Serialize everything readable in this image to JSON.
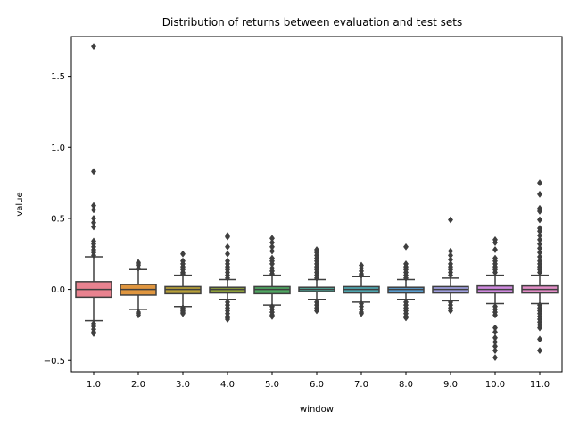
{
  "chart_data": {
    "type": "box",
    "title": "Distribution of returns between evaluation and test sets",
    "xlabel": "window",
    "ylabel": "value",
    "ylim": [
      -0.58,
      1.78
    ],
    "yticks": [
      -0.5,
      0.0,
      0.5,
      1.0,
      1.5
    ],
    "ytick_labels": [
      "−0.5",
      "0.0",
      "0.5",
      "1.0",
      "1.5"
    ],
    "categories": [
      "1.0",
      "2.0",
      "3.0",
      "4.0",
      "5.0",
      "6.0",
      "7.0",
      "8.0",
      "9.0",
      "10.0",
      "11.0"
    ],
    "colors": [
      "#e8828f",
      "#e0963f",
      "#b8a039",
      "#8ea03a",
      "#4fa862",
      "#4ea99a",
      "#4fa7b0",
      "#5a9ed0",
      "#a0a0e0",
      "#d08ae0",
      "#e38ec8"
    ],
    "boxes": [
      {
        "q1": -0.055,
        "median": 0.0,
        "q3": 0.055,
        "whislo": -0.22,
        "whishi": 0.23,
        "outliers": [
          1.71,
          0.83,
          0.59,
          0.56,
          0.5,
          0.47,
          0.44,
          0.34,
          0.32,
          0.3,
          0.28,
          0.26,
          0.24,
          -0.24,
          -0.26,
          -0.28,
          -0.3,
          -0.31
        ]
      },
      {
        "q1": -0.04,
        "median": 0.0,
        "q3": 0.035,
        "whislo": -0.14,
        "whishi": 0.14,
        "outliers": [
          0.19,
          0.18,
          0.17,
          0.15,
          -0.16,
          -0.17,
          -0.18
        ]
      },
      {
        "q1": -0.03,
        "median": 0.0,
        "q3": 0.02,
        "whislo": -0.12,
        "whishi": 0.1,
        "outliers": [
          0.25,
          0.2,
          0.18,
          0.16,
          0.14,
          0.12,
          0.11,
          -0.13,
          -0.14,
          -0.15,
          -0.16,
          -0.17
        ]
      },
      {
        "q1": -0.025,
        "median": 0.0,
        "q3": 0.015,
        "whislo": -0.07,
        "whishi": 0.07,
        "outliers": [
          0.38,
          0.37,
          0.3,
          0.25,
          0.2,
          0.18,
          0.16,
          0.14,
          0.12,
          0.1,
          0.08,
          -0.09,
          -0.11,
          -0.13,
          -0.15,
          -0.17,
          -0.19,
          -0.2,
          -0.21
        ]
      },
      {
        "q1": -0.03,
        "median": 0.0,
        "q3": 0.02,
        "whislo": -0.11,
        "whishi": 0.1,
        "outliers": [
          0.36,
          0.33,
          0.3,
          0.27,
          0.22,
          0.2,
          0.18,
          0.15,
          0.13,
          0.11,
          -0.12,
          -0.14,
          -0.16,
          -0.18,
          -0.19
        ]
      },
      {
        "q1": -0.015,
        "median": 0.0,
        "q3": 0.015,
        "whislo": -0.07,
        "whishi": 0.07,
        "outliers": [
          0.28,
          0.26,
          0.24,
          0.22,
          0.2,
          0.18,
          0.16,
          0.14,
          0.12,
          0.1,
          0.08,
          -0.09,
          -0.11,
          -0.13,
          -0.15
        ]
      },
      {
        "q1": -0.025,
        "median": 0.0,
        "q3": 0.02,
        "whislo": -0.09,
        "whishi": 0.09,
        "outliers": [
          0.17,
          0.15,
          0.13,
          0.11,
          0.1,
          -0.1,
          -0.12,
          -0.14,
          -0.16,
          -0.17
        ]
      },
      {
        "q1": -0.025,
        "median": 0.0,
        "q3": 0.015,
        "whislo": -0.07,
        "whishi": 0.07,
        "outliers": [
          0.3,
          0.18,
          0.16,
          0.14,
          0.12,
          0.1,
          0.08,
          -0.09,
          -0.11,
          -0.13,
          -0.15,
          -0.17,
          -0.19,
          -0.2
        ]
      },
      {
        "q1": -0.025,
        "median": 0.0,
        "q3": 0.02,
        "whislo": -0.08,
        "whishi": 0.08,
        "outliers": [
          0.49,
          0.27,
          0.24,
          0.21,
          0.18,
          0.16,
          0.14,
          0.12,
          0.1,
          -0.09,
          -0.11,
          -0.13,
          -0.15
        ]
      },
      {
        "q1": -0.025,
        "median": 0.0,
        "q3": 0.025,
        "whislo": -0.1,
        "whishi": 0.1,
        "outliers": [
          0.35,
          0.33,
          0.28,
          0.22,
          0.2,
          0.18,
          0.16,
          0.14,
          0.12,
          -0.12,
          -0.14,
          -0.16,
          -0.18,
          -0.27,
          -0.3,
          -0.34,
          -0.37,
          -0.4,
          -0.43,
          -0.48
        ]
      },
      {
        "q1": -0.025,
        "median": 0.0,
        "q3": 0.025,
        "whislo": -0.1,
        "whishi": 0.1,
        "outliers": [
          0.75,
          0.67,
          0.57,
          0.55,
          0.49,
          0.43,
          0.41,
          0.38,
          0.35,
          0.32,
          0.29,
          0.26,
          0.23,
          0.2,
          0.18,
          0.16,
          0.14,
          0.12,
          -0.11,
          -0.13,
          -0.15,
          -0.17,
          -0.19,
          -0.21,
          -0.23,
          -0.25,
          -0.27,
          -0.35,
          -0.43
        ]
      }
    ]
  }
}
